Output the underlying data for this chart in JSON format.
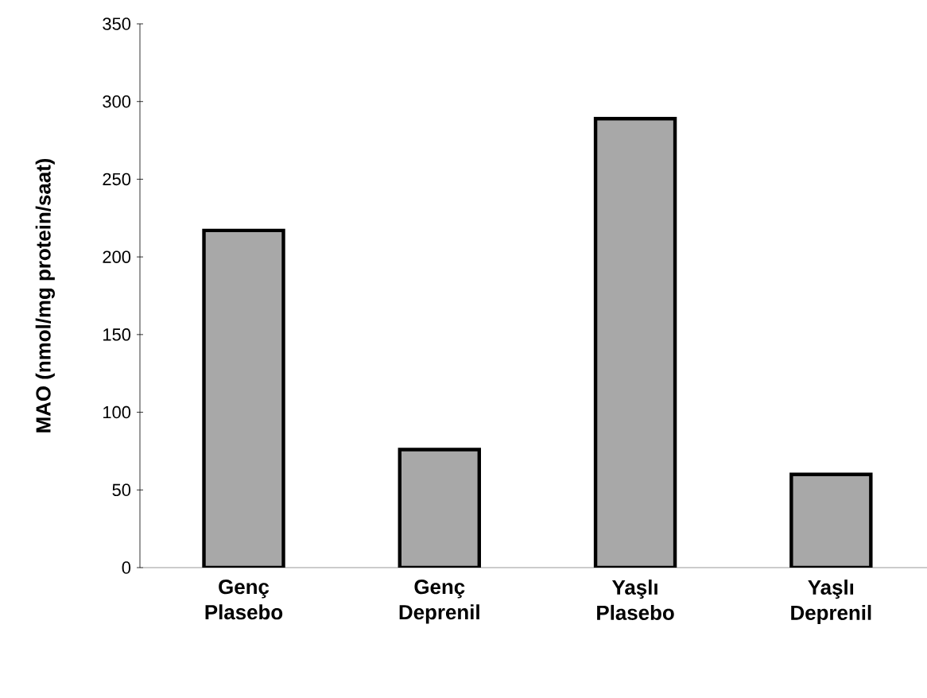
{
  "chart_data": {
    "type": "bar",
    "ylabel": "MAO (nmol/mg protein/saat)",
    "categories": [
      "Genç Plasebo",
      "Genç Deprenil",
      "Yaşlı Plasebo",
      "Yaşlı Deprenil"
    ],
    "values": [
      217,
      76,
      289,
      60
    ],
    "color": "#a8a8a8",
    "ylim": [
      0,
      350
    ],
    "yticks": [
      0,
      50,
      100,
      150,
      200,
      250,
      300,
      350
    ]
  }
}
